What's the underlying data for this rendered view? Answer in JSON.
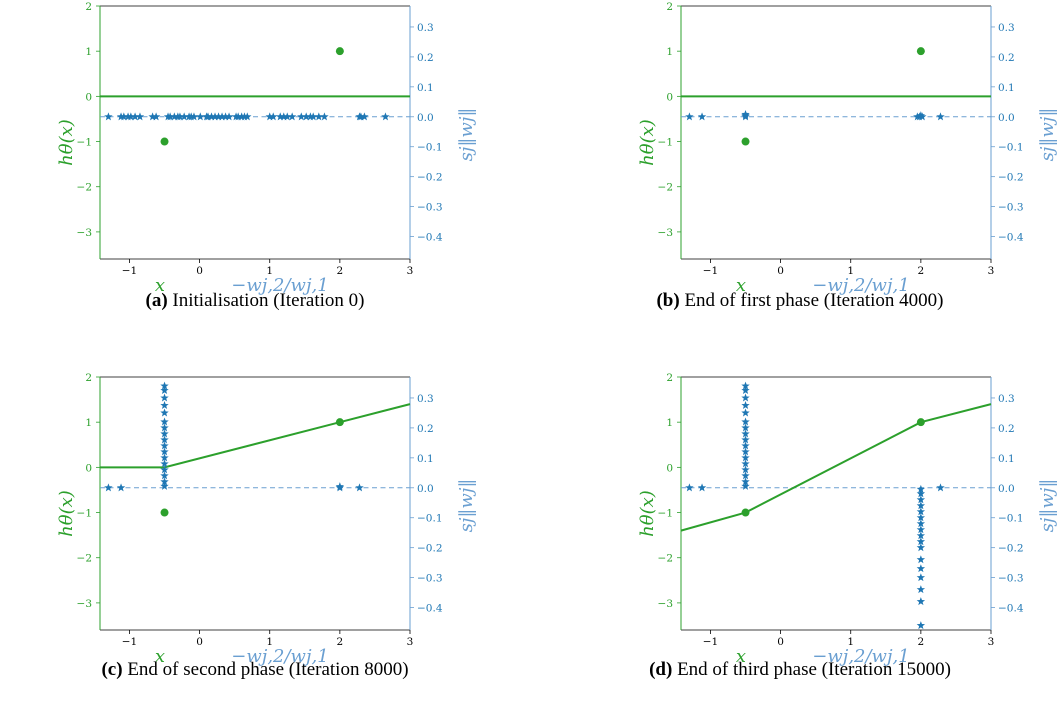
{
  "colors": {
    "green": "#2ca02c",
    "blue": "#1f77b4",
    "blue_light": "#6a9fd1",
    "axes": "#000000"
  },
  "axes_text": {
    "left_label": "hθ(x)",
    "x_label_1": "x",
    "x_label_2": "−wj,2/wj,1",
    "right_label": "sj‖wj‖"
  },
  "captions": [
    {
      "tag": "(a)",
      "text": " Initialisation (Iteration 0)"
    },
    {
      "tag": "(b)",
      "text": " End of first phase (Iteration 4000)"
    },
    {
      "tag": "(c)",
      "text": " End of second phase (Iteration 8000)"
    },
    {
      "tag": "(d)",
      "text": " End of third phase (Iteration 15000)"
    }
  ],
  "chart_data": [
    {
      "type": "scatter",
      "title": "",
      "xlim": [
        -1.42,
        3.0
      ],
      "ylim_left": [
        -3.6,
        2.0
      ],
      "ylim_right": [
        -0.475,
        0.37
      ],
      "x_ticks": [
        -1,
        0,
        1,
        2,
        3
      ],
      "y_left_ticks": [
        -3,
        -2,
        -1,
        0,
        1,
        2
      ],
      "y_right_ticks": [
        -0.4,
        -0.3,
        -0.2,
        -0.1,
        0.0,
        0.1,
        0.2,
        0.3
      ],
      "grid": false,
      "training_points": {
        "x": [
          -0.5,
          2.0
        ],
        "y": [
          -1.0,
          1.0
        ]
      },
      "prediction_line": {
        "x": [
          -1.42,
          3.0
        ],
        "y": [
          0.0,
          0.0
        ]
      },
      "neuron_stars": {
        "x": [
          -1.3,
          -1.12,
          -1.08,
          -1.02,
          -0.98,
          -0.92,
          -0.85,
          -0.67,
          -0.62,
          -0.45,
          -0.42,
          -0.36,
          -0.31,
          -0.28,
          -0.22,
          -0.15,
          -0.12,
          -0.08,
          0.01,
          0.1,
          0.12,
          0.17,
          0.22,
          0.27,
          0.32,
          0.37,
          0.42,
          0.52,
          0.55,
          0.6,
          0.64,
          0.68,
          1.0,
          1.05,
          1.15,
          1.2,
          1.25,
          1.32,
          1.45,
          1.52,
          1.58,
          1.62,
          1.7,
          1.78,
          2.28,
          2.3,
          2.35,
          2.65
        ],
        "y": [
          0.0,
          0.0,
          0.0,
          0.0,
          0.0,
          0.0,
          0.0,
          0.0,
          0.0,
          0.0,
          0.0,
          0.0,
          0.0,
          0.0,
          0.0,
          0.0,
          0.0,
          0.0,
          0.0,
          0.0,
          0.0,
          0.0,
          0.0,
          0.0,
          0.0,
          0.0,
          0.0,
          0.0,
          0.0,
          0.0,
          0.0,
          0.0,
          0.0,
          0.0,
          0.0,
          0.0,
          0.0,
          0.0,
          0.0,
          0.0,
          0.0,
          0.0,
          0.0,
          0.0,
          0.0,
          0.0,
          0.0,
          0.0
        ]
      }
    },
    {
      "type": "scatter",
      "title": "",
      "xlim": [
        -1.42,
        3.0
      ],
      "ylim_left": [
        -3.6,
        2.0
      ],
      "ylim_right": [
        -0.475,
        0.37
      ],
      "x_ticks": [
        -1,
        0,
        1,
        2,
        3
      ],
      "y_left_ticks": [
        -3,
        -2,
        -1,
        0,
        1,
        2
      ],
      "y_right_ticks": [
        -0.4,
        -0.3,
        -0.2,
        -0.1,
        0.0,
        0.1,
        0.2,
        0.3
      ],
      "grid": false,
      "training_points": {
        "x": [
          -0.5,
          2.0
        ],
        "y": [
          -1.0,
          1.0
        ]
      },
      "prediction_line": {
        "x": [
          -1.42,
          3.0
        ],
        "y": [
          0.0,
          0.0
        ]
      },
      "neuron_stars": {
        "x": [
          -1.3,
          -1.12,
          -0.5,
          -0.5,
          -0.5,
          1.95,
          1.98,
          2.0,
          2.02,
          2.28
        ],
        "y": [
          0.0,
          0.0,
          0.0,
          0.004,
          0.008,
          0.0,
          0.0,
          0.004,
          0.0,
          0.0
        ]
      }
    },
    {
      "type": "scatter",
      "title": "",
      "xlim": [
        -1.42,
        3.0
      ],
      "ylim_left": [
        -3.6,
        2.0
      ],
      "ylim_right": [
        -0.475,
        0.37
      ],
      "x_ticks": [
        -1,
        0,
        1,
        2,
        3
      ],
      "y_left_ticks": [
        -3,
        -2,
        -1,
        0,
        1,
        2
      ],
      "y_right_ticks": [
        -0.4,
        -0.3,
        -0.2,
        -0.1,
        0.0,
        0.1,
        0.2,
        0.3
      ],
      "grid": false,
      "training_points": {
        "x": [
          -0.5,
          2.0
        ],
        "y": [
          -1.0,
          1.0
        ]
      },
      "prediction_line": {
        "x": [
          -1.42,
          -0.5,
          2.0,
          3.0
        ],
        "y": [
          0.0,
          0.0,
          1.0,
          1.4
        ]
      },
      "neuron_stars": {
        "x": [
          -1.3,
          -1.12,
          -0.5,
          -0.5,
          -0.5,
          -0.5,
          -0.5,
          -0.5,
          -0.5,
          -0.5,
          -0.5,
          -0.5,
          -0.5,
          -0.5,
          -0.5,
          -0.5,
          -0.5,
          -0.5,
          -0.5,
          2.0,
          2.0,
          2.28
        ],
        "y": [
          0.0,
          0.0,
          0.34,
          0.325,
          0.3,
          0.275,
          0.25,
          0.22,
          0.2,
          0.18,
          0.16,
          0.14,
          0.12,
          0.1,
          0.08,
          0.06,
          0.04,
          0.02,
          0.005,
          0.0,
          0.004,
          0.0
        ]
      }
    },
    {
      "type": "scatter",
      "title": "",
      "xlim": [
        -1.42,
        3.0
      ],
      "ylim_left": [
        -3.6,
        2.0
      ],
      "ylim_right": [
        -0.475,
        0.37
      ],
      "x_ticks": [
        -1,
        0,
        1,
        2,
        3
      ],
      "y_left_ticks": [
        -3,
        -2,
        -1,
        0,
        1,
        2
      ],
      "y_right_ticks": [
        -0.4,
        -0.3,
        -0.2,
        -0.1,
        0.0,
        0.1,
        0.2,
        0.3
      ],
      "grid": false,
      "training_points": {
        "x": [
          -0.5,
          2.0
        ],
        "y": [
          -1.0,
          1.0
        ]
      },
      "prediction_line": {
        "x": [
          -1.42,
          -0.5,
          2.0,
          3.0
        ],
        "y": [
          -1.4,
          -1.0,
          1.0,
          1.4
        ]
      },
      "neuron_stars": {
        "x": [
          -1.3,
          -1.12,
          -0.5,
          -0.5,
          -0.5,
          -0.5,
          -0.5,
          -0.5,
          -0.5,
          -0.5,
          -0.5,
          -0.5,
          -0.5,
          -0.5,
          -0.5,
          -0.5,
          -0.5,
          -0.5,
          -0.5,
          2.0,
          2.0,
          2.0,
          2.0,
          2.0,
          2.0,
          2.0,
          2.0,
          2.0,
          2.0,
          2.0,
          2.0,
          2.0,
          2.0,
          2.0,
          2.0,
          2.0,
          2.28
        ],
        "y": [
          0.0,
          0.0,
          0.34,
          0.325,
          0.3,
          0.275,
          0.25,
          0.22,
          0.2,
          0.18,
          0.16,
          0.14,
          0.12,
          0.1,
          0.08,
          0.06,
          0.04,
          0.02,
          0.005,
          -0.005,
          -0.02,
          -0.04,
          -0.06,
          -0.08,
          -0.1,
          -0.12,
          -0.14,
          -0.16,
          -0.18,
          -0.2,
          -0.24,
          -0.27,
          -0.3,
          -0.34,
          -0.38,
          -0.46,
          0.0
        ]
      }
    }
  ]
}
